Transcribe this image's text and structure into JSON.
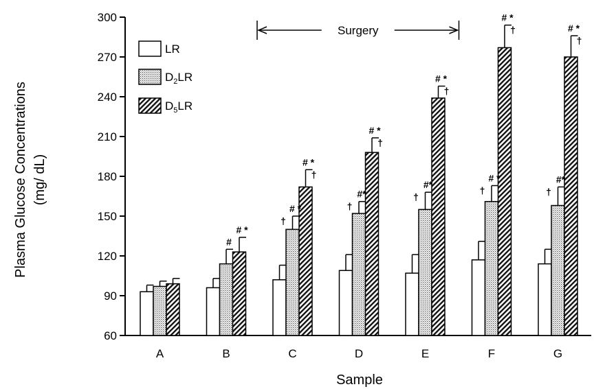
{
  "chart_data": {
    "type": "bar",
    "xlabel": "Sample",
    "ylabel_line1": "Plasma Glucose Concentrations",
    "ylabel_line2": "(mg/ dL)",
    "ylim": [
      60,
      300
    ],
    "yticks": [
      60,
      90,
      120,
      150,
      180,
      210,
      240,
      270,
      300
    ],
    "categories": [
      "A",
      "B",
      "C",
      "D",
      "E",
      "F",
      "G"
    ],
    "legend_position": "top-left",
    "series": [
      {
        "name": "LR",
        "name_main": "LR",
        "name_sub": "",
        "name_rest": "",
        "pattern": "open",
        "values": [
          93,
          96,
          102,
          109,
          107,
          117,
          114
        ],
        "errors": [
          5,
          7,
          11,
          12,
          14,
          14,
          11
        ],
        "annotations": [
          "",
          "",
          "",
          "",
          "",
          "",
          ""
        ],
        "daggers": [
          false,
          false,
          false,
          false,
          false,
          false,
          false
        ]
      },
      {
        "name": "D2LR",
        "name_main": "D",
        "name_sub": "2",
        "name_rest": "LR",
        "pattern": "dotted",
        "values": [
          97,
          114,
          140,
          152,
          155,
          161,
          158
        ],
        "errors": [
          4,
          11,
          10,
          9,
          13,
          12,
          14
        ],
        "annotations": [
          "",
          "#",
          "# *",
          "#*",
          "#*",
          "# *",
          "#*"
        ],
        "daggers": [
          false,
          false,
          true,
          true,
          true,
          true,
          true
        ]
      },
      {
        "name": "D5LR",
        "name_main": "D",
        "name_sub": "5",
        "name_rest": "LR",
        "pattern": "hatched",
        "values": [
          99,
          123,
          172,
          198,
          239,
          277,
          270
        ],
        "errors": [
          4,
          11,
          13,
          11,
          9,
          17,
          16
        ],
        "annotations": [
          "",
          "# *",
          "# *",
          "# *",
          "# *",
          "# *",
          "# *"
        ],
        "daggers": [
          false,
          false,
          true,
          true,
          true,
          true,
          true
        ]
      }
    ],
    "surgery_annotation": {
      "label": "Surgery",
      "from_category": "C",
      "to_category": "F"
    }
  }
}
